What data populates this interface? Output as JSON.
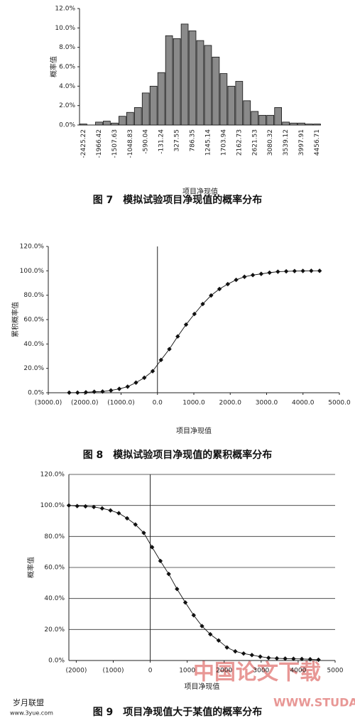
{
  "chart_data": [
    {
      "type": "bar",
      "title": "图 7　模拟试验项目净现值的概率分布",
      "x_label": "项目净现值",
      "y_label": "概率值",
      "categories": [
        "-2425.22",
        null,
        "-1966.42",
        null,
        "-1507.63",
        null,
        "-1048.83",
        null,
        "-590.04",
        null,
        "-131.24",
        null,
        "327.55",
        null,
        "786.35",
        null,
        "1245.14",
        null,
        "1703.94",
        null,
        "2162.73",
        null,
        "2621.53",
        null,
        "3080.32",
        null,
        "3539.12",
        null,
        "3997.91",
        null,
        "4456.71"
      ],
      "values": [
        0.1,
        0.0,
        0.3,
        0.4,
        0.2,
        0.9,
        1.3,
        1.8,
        3.3,
        4.0,
        5.4,
        9.2,
        8.9,
        10.4,
        9.7,
        8.7,
        8.2,
        7.0,
        5.3,
        4.0,
        4.5,
        2.5,
        1.4,
        1.0,
        1.0,
        1.8,
        0.3,
        0.2,
        0.2,
        0.1,
        0.1
      ],
      "color": "#8a8a8a",
      "ylim": [
        0,
        12
      ],
      "yticks": [
        {
          "value": 0,
          "label": "0.0%"
        },
        {
          "value": 2,
          "label": "2.0%"
        },
        {
          "value": 4,
          "label": "4.0%"
        },
        {
          "value": 6,
          "label": "6.0%"
        },
        {
          "value": 8,
          "label": "8.0%"
        },
        {
          "value": 10,
          "label": "10.0%"
        },
        {
          "value": 12,
          "label": "12.0%"
        }
      ],
      "grid": false
    },
    {
      "type": "line",
      "title": "图 8　模拟试验项目净现值的累积概率分布",
      "x_label": "项目净现值",
      "y_label": "累积概率值",
      "x": [
        -2425.2,
        -2195.8,
        -1966.4,
        -1737.0,
        -1507.6,
        -1278.2,
        -1048.8,
        -819.4,
        -590.0,
        -360.6,
        -131.2,
        98.2,
        327.6,
        557.0,
        786.4,
        1015.8,
        1245.1,
        1474.5,
        1703.9,
        1933.3,
        2162.7,
        2392.1,
        2621.5,
        2850.9,
        3080.3,
        3309.7,
        3539.1,
        3768.5,
        3997.9,
        4227.3,
        4456.7
      ],
      "values": [
        0.1,
        0.1,
        0.4,
        0.8,
        1.0,
        1.9,
        3.2,
        5.0,
        8.3,
        12.3,
        17.7,
        26.9,
        35.8,
        46.2,
        55.9,
        64.6,
        72.8,
        79.8,
        85.1,
        89.1,
        92.6,
        95.1,
        96.5,
        97.5,
        98.5,
        99.3,
        99.6,
        99.8,
        99.9,
        100.0,
        100.0
      ],
      "color": "#111111",
      "xlim": [
        -3000,
        5000
      ],
      "ylim": [
        0,
        120
      ],
      "xticks": [
        {
          "value": -3000,
          "label": "(3000.0)"
        },
        {
          "value": -2000,
          "label": "(2000.0)"
        },
        {
          "value": -1000,
          "label": "(1000.0)"
        },
        {
          "value": 0,
          "label": "0.0"
        },
        {
          "value": 1000,
          "label": "1000.0"
        },
        {
          "value": 2000,
          "label": "2000.0"
        },
        {
          "value": 3000,
          "label": "3000.0"
        },
        {
          "value": 4000,
          "label": "4000.0"
        },
        {
          "value": 5000,
          "label": "5000.0"
        }
      ],
      "yticks": [
        {
          "value": 0,
          "label": "0.0%"
        },
        {
          "value": 20,
          "label": "20.0%"
        },
        {
          "value": 40,
          "label": "40.0%"
        },
        {
          "value": 60,
          "label": "60.0%"
        },
        {
          "value": 80,
          "label": "80.0%"
        },
        {
          "value": 100,
          "label": "100.0%"
        },
        {
          "value": 120,
          "label": "120.0%"
        }
      ],
      "grid": false
    },
    {
      "type": "line",
      "title": "图 9　项目净现值大于某值的概率分布",
      "x_label": "项目净现值",
      "y_label": "概率值",
      "x": [
        -2200,
        -1975,
        -1750,
        -1525,
        -1300,
        -1075,
        -850,
        -625,
        -400,
        -175,
        50,
        275,
        500,
        725,
        950,
        1175,
        1400,
        1625,
        1850,
        2075,
        2300,
        2525,
        2750,
        2975,
        3200,
        3425,
        3650,
        3875,
        4100,
        4325,
        4550
      ],
      "values": [
        100.0,
        99.6,
        99.4,
        99.0,
        98.1,
        96.8,
        95.0,
        91.7,
        87.7,
        82.3,
        73.1,
        64.2,
        55.8,
        46.1,
        37.4,
        29.2,
        22.2,
        16.9,
        12.9,
        8.4,
        5.9,
        4.5,
        3.5,
        2.5,
        1.7,
        1.4,
        1.2,
        1.1,
        1.0,
        0.8,
        0.5
      ],
      "color": "#111111",
      "xlim": [
        -2200,
        5000
      ],
      "ylim": [
        0,
        120
      ],
      "xticks": [
        {
          "value": -2000,
          "label": "(2000)"
        },
        {
          "value": -1000,
          "label": "(1000)"
        },
        0,
        1000,
        2000,
        3000,
        4000,
        5000
      ],
      "yticks": [
        {
          "value": 0,
          "label": "0.0%"
        },
        {
          "value": 20,
          "label": "20.0%"
        },
        {
          "value": 40,
          "label": "40.0%"
        },
        {
          "value": 60,
          "label": "60.0%"
        },
        {
          "value": 80,
          "label": "80.0%"
        },
        {
          "value": 100,
          "label": "100.0%"
        },
        {
          "value": 120,
          "label": "120.0%"
        }
      ],
      "grid": true
    }
  ],
  "watermarks": {
    "site_cn": "中国论文下载",
    "site_url": "WWW.STUDA.",
    "logo": "岁月联盟",
    "logo_url": "www.3yue.com"
  }
}
